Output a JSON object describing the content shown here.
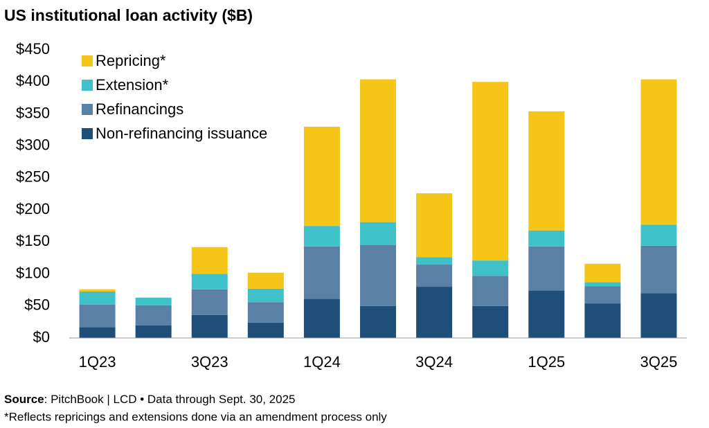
{
  "chart_data": {
    "type": "stacked_bar",
    "title": "US institutional loan activity ($B)",
    "categories": [
      "1Q23",
      null,
      "3Q23",
      null,
      "1Q24",
      null,
      "3Q24",
      null,
      "1Q25",
      null,
      "3Q25"
    ],
    "series": [
      {
        "name": "Non-refinancing issuance",
        "color": "#1f4e79",
        "values": [
          17,
          19.5,
          36,
          24,
          61,
          50,
          80,
          50,
          74,
          54,
          70
        ]
      },
      {
        "name": "Refinancings",
        "color": "#5b80a5",
        "values": [
          35,
          31.5,
          40,
          32,
          82,
          95,
          35,
          47,
          69,
          27,
          74
        ]
      },
      {
        "name": "Extension*",
        "color": "#3fc1c9",
        "values": [
          20.5,
          12,
          24,
          21,
          32,
          36,
          11,
          24,
          25,
          6,
          33
        ]
      },
      {
        "name": "Repricing*",
        "color": "#f5c518",
        "values": [
          3.5,
          0,
          42,
          25,
          155,
          223,
          100,
          279,
          186,
          29,
          227
        ]
      }
    ],
    "ylim": [
      0,
      450
    ],
    "yticks": [
      {
        "value": 0,
        "label": "$0"
      },
      {
        "value": 50,
        "label": "$50"
      },
      {
        "value": 100,
        "label": "$100"
      },
      {
        "value": 150,
        "label": "$150"
      },
      {
        "value": 200,
        "label": "$200"
      },
      {
        "value": 250,
        "label": "$250"
      },
      {
        "value": 300,
        "label": "$300"
      },
      {
        "value": 350,
        "label": "$350"
      },
      {
        "value": 400,
        "label": "$400"
      },
      {
        "value": 450,
        "label": "$450"
      }
    ],
    "grid": false,
    "legend": "top-left",
    "source_label": "Source",
    "source_text": ": PitchBook | LCD • Data through Sept. 30, 2025",
    "footnote": "*Reflects repricings and extensions done via an amendment process only"
  }
}
